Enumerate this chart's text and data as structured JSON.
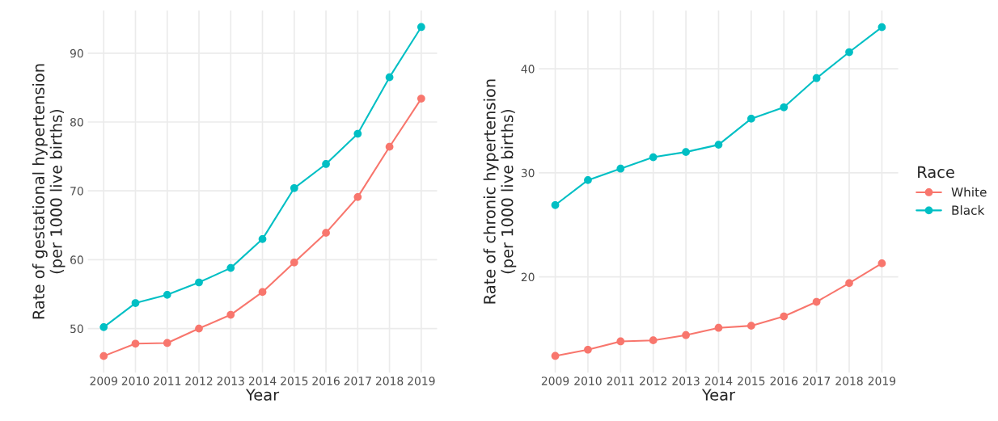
{
  "chart_data": [
    {
      "type": "line",
      "xlabel": "Year",
      "ylabel": "Rate of gestational hypertension\n(per 1000 live births)",
      "x": [
        2009,
        2010,
        2011,
        2012,
        2013,
        2014,
        2015,
        2016,
        2017,
        2018,
        2019
      ],
      "series": [
        {
          "color": "#f8766d",
          "values": [
            46.0,
            47.8,
            47.9,
            50.0,
            52.0,
            55.3,
            59.6,
            63.9,
            69.1,
            76.4,
            83.4
          ]
        },
        {
          "color": "#00bfc4",
          "values": [
            50.2,
            53.7,
            54.9,
            56.7,
            58.8,
            63.0,
            70.4,
            73.9,
            78.3,
            86.5,
            93.8
          ]
        }
      ],
      "xlim": [
        2008.5,
        2019.5
      ],
      "xticks": [
        2009,
        2010,
        2011,
        2012,
        2013,
        2014,
        2015,
        2016,
        2017,
        2018,
        2019
      ],
      "ylim": [
        43.6,
        96.2
      ],
      "yticks": [
        50,
        60,
        70,
        80,
        90
      ],
      "grid": true,
      "marker": "circle",
      "line_style": "solid",
      "legend": false
    },
    {
      "type": "line",
      "xlabel": "Year",
      "ylabel": "Rate of chronic hypertension\n(per 1000 live births)",
      "legend_title": "Race",
      "x": [
        2009,
        2010,
        2011,
        2012,
        2013,
        2014,
        2015,
        2016,
        2017,
        2018,
        2019
      ],
      "series": [
        {
          "name": "White",
          "color": "#f8766d",
          "values": [
            12.4,
            13.0,
            13.8,
            13.9,
            14.4,
            15.1,
            15.3,
            16.2,
            17.6,
            19.4,
            21.3
          ]
        },
        {
          "name": "Black",
          "color": "#00bfc4",
          "values": [
            26.9,
            29.3,
            30.4,
            31.5,
            32.0,
            32.7,
            35.2,
            36.3,
            39.1,
            41.6,
            44.0
          ]
        }
      ],
      "xlim": [
        2008.5,
        2019.5
      ],
      "xticks": [
        2009,
        2010,
        2011,
        2012,
        2013,
        2014,
        2015,
        2016,
        2017,
        2018,
        2019
      ],
      "ylim": [
        10.8,
        45.6
      ],
      "yticks": [
        20,
        30,
        40
      ],
      "grid": true,
      "marker": "circle",
      "line_style": "solid",
      "legend": "right"
    }
  ]
}
